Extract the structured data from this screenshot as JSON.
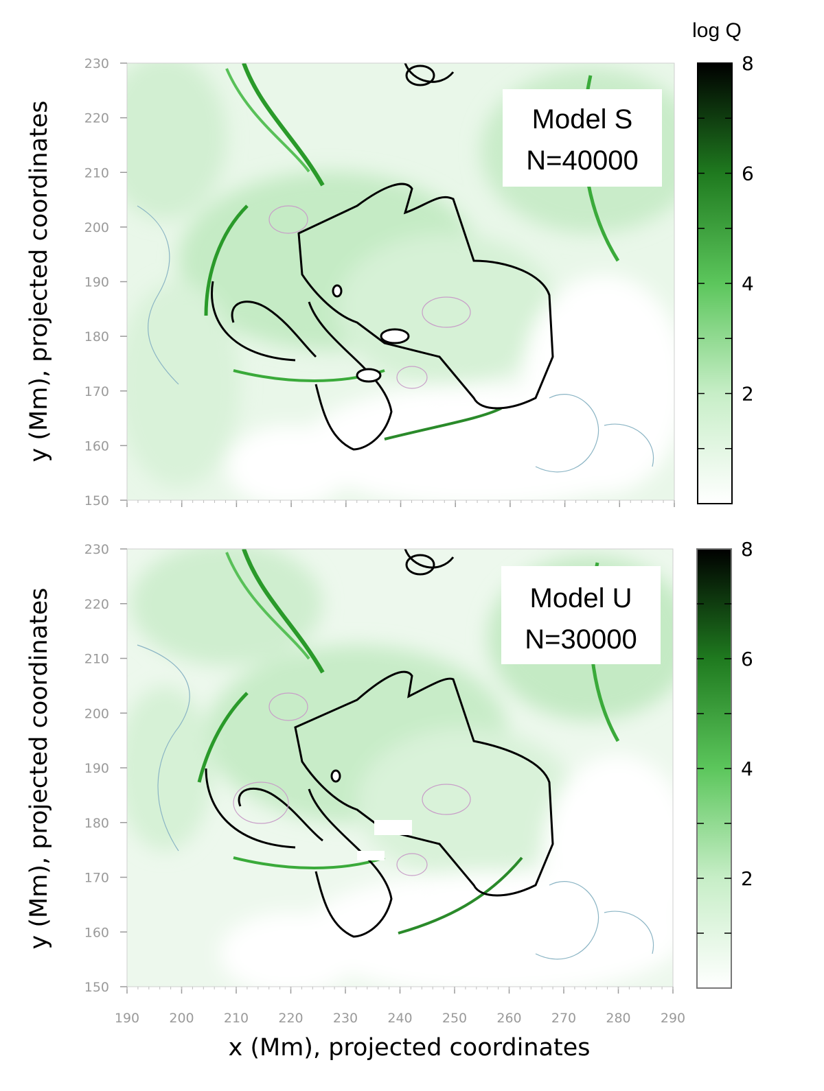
{
  "chart_data": [
    {
      "type": "heatmap",
      "panel": "top",
      "model_label": "Model S",
      "n_label": "N=40000",
      "ylabel": "y (Mm), projected coordinates",
      "ylim": [
        150,
        230
      ],
      "xlim": [
        190,
        290
      ],
      "y_ticks": [
        "150",
        "160",
        "170",
        "180",
        "190",
        "200",
        "210",
        "220",
        "230"
      ],
      "x_ticks": [],
      "colorbar": {
        "title": "log Q",
        "range": [
          0,
          8
        ],
        "ticks": [
          "2",
          "4",
          "6",
          "8"
        ],
        "colors": [
          "#ffffff",
          "#8fd88f",
          "#2fa82f",
          "#0b3d0b",
          "#000000"
        ]
      }
    },
    {
      "type": "heatmap",
      "panel": "bottom",
      "model_label": "Model U",
      "n_label": "N=30000",
      "ylabel": "y (Mm), projected coordinates",
      "xlabel": "x (Mm), projected coordinates",
      "ylim": [
        150,
        230
      ],
      "xlim": [
        190,
        290
      ],
      "y_ticks": [
        "150",
        "160",
        "170",
        "180",
        "190",
        "200",
        "210",
        "220",
        "230"
      ],
      "x_ticks": [
        "190",
        "200",
        "210",
        "220",
        "230",
        "240",
        "250",
        "260",
        "270",
        "280",
        "290"
      ],
      "colorbar": {
        "title": "",
        "range": [
          0,
          8
        ],
        "ticks": [
          "2",
          "4",
          "6",
          "8"
        ],
        "colors": [
          "#ffffff",
          "#8fd88f",
          "#2fa82f",
          "#0b3d0b",
          "#000000"
        ]
      }
    }
  ]
}
